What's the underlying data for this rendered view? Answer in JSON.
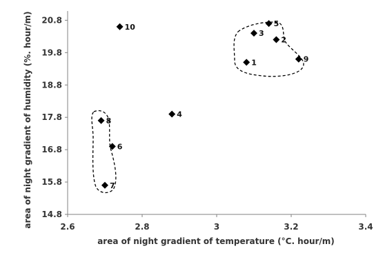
{
  "chart_data": {
    "type": "scatter",
    "title": "",
    "xlabel": "area of night gradient of temperature (°C. hour/m)",
    "ylabel": "area of night gradient of humidity (%. hour/m)",
    "xlim": [
      2.6,
      3.4
    ],
    "ylim": [
      14.8,
      21.0
    ],
    "x_ticks": [
      2.6,
      2.8,
      3.0,
      3.2,
      3.4
    ],
    "y_ticks": [
      14.8,
      15.8,
      16.8,
      17.8,
      18.8,
      19.8,
      20.8
    ],
    "x_tick_labels": [
      "2.6",
      "2.8",
      "3",
      "3.2",
      "3.4"
    ],
    "y_tick_labels": [
      "14.8",
      "15.8",
      "16.8",
      "17.8",
      "18.8",
      "19.8",
      "20.8"
    ],
    "grid": false,
    "marker": "diamond",
    "marker_color": "#000000",
    "points": [
      {
        "label": "1",
        "x": 3.08,
        "y": 19.5
      },
      {
        "label": "2",
        "x": 3.16,
        "y": 20.2
      },
      {
        "label": "3",
        "x": 3.1,
        "y": 20.4
      },
      {
        "label": "4",
        "x": 2.88,
        "y": 17.9
      },
      {
        "label": "5",
        "x": 3.14,
        "y": 20.7
      },
      {
        "label": "6",
        "x": 2.72,
        "y": 16.9
      },
      {
        "label": "7",
        "x": 2.7,
        "y": 15.7
      },
      {
        "label": "8",
        "x": 2.69,
        "y": 17.7
      },
      {
        "label": "9",
        "x": 3.22,
        "y": 19.6
      },
      {
        "label": "10",
        "x": 2.74,
        "y": 20.6
      }
    ],
    "groups": [
      {
        "members": [
          "1",
          "2",
          "3",
          "5",
          "9"
        ],
        "style": "dashed-outline"
      },
      {
        "members": [
          "6",
          "7",
          "8"
        ],
        "style": "dashed-outline"
      }
    ]
  }
}
